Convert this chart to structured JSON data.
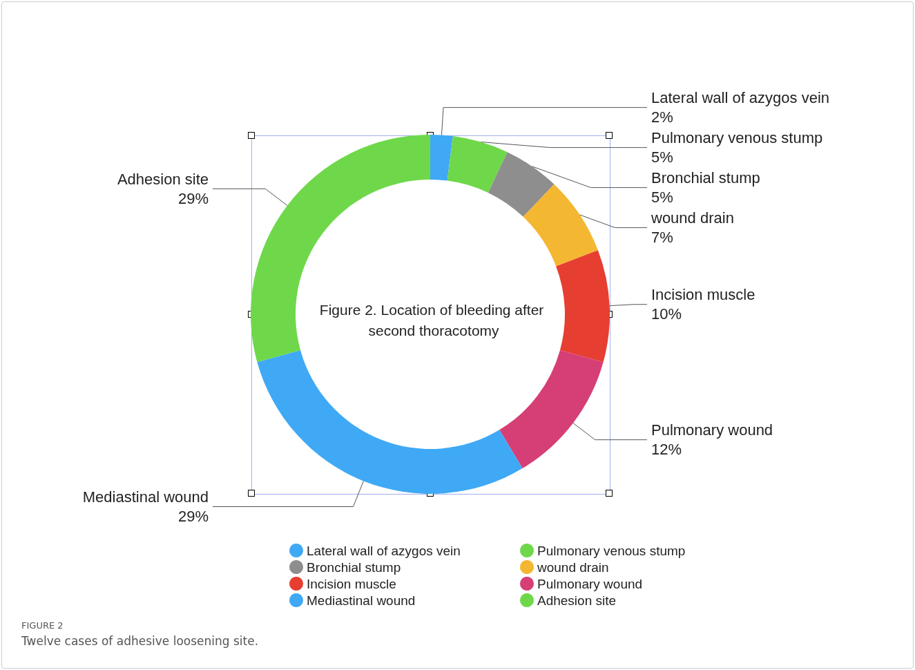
{
  "chart_data": {
    "type": "donut",
    "title": "Figure 2. Location of bleeding after second thoracotomy",
    "categories": [
      "Lateral wall of azygos vein",
      "Pulmonary venous stump",
      "Bronchial stump",
      "wound drain",
      "Incision muscle",
      "Pulmonary wound",
      "Mediastinal wound",
      "Adhesion site"
    ],
    "values": [
      2,
      5,
      5,
      7,
      10,
      12,
      29,
      29
    ],
    "value_labels": [
      "2%",
      "5%",
      "5%",
      "7%",
      "10%",
      "12%",
      "29%",
      "29%"
    ],
    "colors": [
      "#3fa9f5",
      "#6fd84a",
      "#8e8e8e",
      "#f4b731",
      "#e63e30",
      "#d63f75",
      "#3fa9f5",
      "#6fd84a"
    ],
    "legend": "bottom",
    "annotations": [
      "FIGURE 2",
      "Twelve cases of adhesive loosening site."
    ]
  }
}
